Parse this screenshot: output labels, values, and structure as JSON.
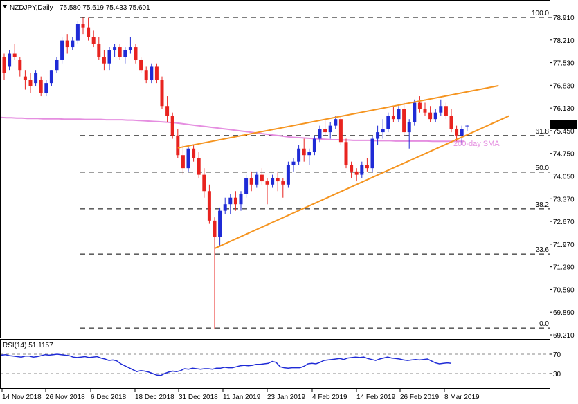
{
  "header": {
    "symbol_line": "NZDJPY,Daily",
    "ohlc_line": "75.580 75.619 75.433 75.601"
  },
  "colors": {
    "bull": "#1f2bd6",
    "bear": "#e8231f",
    "sma": "#e58ee0",
    "trend": "#f5941f",
    "fib": "#000000",
    "rsi": "#1f2bd6",
    "price_tag_bg": "#000000",
    "price_tag_fg": "#ffffff"
  },
  "chart_data": [
    {
      "type": "candlestick",
      "title": "NZDJPY,Daily",
      "x_tick_labels": [
        "14 Nov 2018",
        "26 Nov 2018",
        "6 Dec 2018",
        "18 Dec 2018",
        "31 Dec 2018",
        "11 Jan 2019",
        "23 Jan 2019",
        "4 Feb 2019",
        "14 Feb 2019",
        "26 Feb 2019",
        "8 Mar 2019"
      ],
      "y_tick_labels": [
        "78.910",
        "78.210",
        "77.530",
        "76.830",
        "76.130",
        "75.450",
        "74.750",
        "74.050",
        "73.370",
        "72.670",
        "71.970",
        "71.290",
        "70.590",
        "69.890",
        "69.210"
      ],
      "ylim": [
        69.21,
        78.91
      ],
      "current_price": "75.601",
      "candles": [
        [
          77.7,
          77.8,
          77.0,
          77.2
        ],
        [
          77.4,
          77.9,
          77.3,
          77.8
        ],
        [
          77.8,
          78.1,
          77.6,
          77.7
        ],
        [
          77.6,
          77.7,
          77.1,
          77.3
        ],
        [
          77.1,
          77.3,
          76.7,
          77.0
        ],
        [
          77.0,
          77.2,
          76.6,
          76.8
        ],
        [
          76.9,
          77.3,
          76.8,
          77.2
        ],
        [
          77.0,
          77.1,
          76.5,
          76.6
        ],
        [
          76.6,
          77.0,
          76.5,
          76.9
        ],
        [
          76.9,
          77.3,
          76.8,
          77.3
        ],
        [
          77.3,
          77.7,
          77.2,
          77.6
        ],
        [
          77.6,
          78.3,
          77.5,
          78.2
        ],
        [
          78.2,
          78.4,
          77.8,
          78.0
        ],
        [
          78.0,
          78.3,
          77.9,
          78.2
        ],
        [
          78.2,
          78.8,
          78.1,
          78.7
        ],
        [
          78.7,
          78.9,
          78.4,
          78.6
        ],
        [
          78.6,
          78.9,
          78.2,
          78.3
        ],
        [
          78.3,
          78.5,
          78.0,
          78.1
        ],
        [
          78.1,
          78.3,
          77.6,
          77.7
        ],
        [
          77.7,
          77.9,
          77.3,
          77.5
        ],
        [
          77.5,
          78.0,
          77.3,
          77.9
        ],
        [
          77.9,
          78.1,
          77.7,
          78.0
        ],
        [
          78.0,
          78.1,
          77.6,
          77.7
        ],
        [
          77.7,
          78.0,
          77.5,
          77.9
        ],
        [
          77.9,
          78.3,
          77.8,
          78.0
        ],
        [
          78.0,
          78.1,
          77.5,
          77.6
        ],
        [
          77.6,
          77.7,
          77.2,
          77.3
        ],
        [
          77.3,
          77.4,
          76.9,
          77.0
        ],
        [
          77.0,
          77.5,
          76.9,
          77.4
        ],
        [
          77.4,
          77.5,
          76.9,
          77.0
        ],
        [
          77.0,
          77.1,
          76.1,
          76.2
        ],
        [
          76.2,
          76.5,
          75.7,
          75.9
        ],
        [
          75.9,
          76.0,
          75.2,
          75.3
        ],
        [
          75.3,
          75.5,
          74.6,
          74.7
        ],
        [
          74.7,
          75.0,
          74.1,
          74.3
        ],
        [
          74.3,
          75.0,
          74.2,
          74.9
        ],
        [
          74.9,
          75.0,
          74.5,
          74.6
        ],
        [
          74.6,
          74.8,
          74.0,
          74.1
        ],
        [
          74.1,
          74.3,
          73.4,
          73.6
        ],
        [
          73.6,
          73.8,
          72.6,
          72.7
        ],
        [
          72.7,
          72.8,
          69.4,
          72.2
        ],
        [
          72.2,
          73.1,
          71.9,
          73.0
        ],
        [
          73.0,
          73.4,
          72.9,
          73.2
        ],
        [
          73.2,
          73.5,
          72.9,
          73.4
        ],
        [
          73.4,
          73.6,
          73.0,
          73.2
        ],
        [
          73.2,
          73.6,
          73.0,
          73.5
        ],
        [
          73.5,
          74.1,
          73.4,
          74.0
        ],
        [
          74.0,
          74.2,
          73.6,
          73.8
        ],
        [
          73.8,
          74.2,
          73.7,
          74.1
        ],
        [
          74.1,
          74.3,
          73.8,
          73.9
        ],
        [
          73.9,
          74.0,
          73.2,
          73.8
        ],
        [
          73.8,
          74.1,
          73.7,
          74.0
        ],
        [
          74.0,
          74.2,
          73.6,
          73.9
        ],
        [
          73.9,
          74.0,
          73.4,
          73.8
        ],
        [
          73.8,
          74.5,
          73.7,
          74.4
        ],
        [
          74.4,
          74.6,
          74.2,
          74.5
        ],
        [
          74.5,
          75.0,
          74.4,
          74.9
        ],
        [
          74.9,
          75.2,
          74.5,
          74.7
        ],
        [
          74.7,
          74.9,
          74.4,
          74.8
        ],
        [
          74.8,
          75.3,
          74.7,
          75.2
        ],
        [
          75.2,
          75.6,
          75.1,
          75.5
        ],
        [
          75.5,
          75.8,
          75.3,
          75.4
        ],
        [
          75.4,
          75.7,
          75.2,
          75.6
        ],
        [
          75.6,
          75.9,
          75.5,
          75.8
        ],
        [
          75.8,
          75.9,
          75.0,
          75.1
        ],
        [
          75.1,
          75.2,
          74.3,
          74.4
        ],
        [
          74.4,
          74.5,
          74.0,
          74.2
        ],
        [
          74.2,
          74.3,
          73.9,
          74.1
        ],
        [
          74.1,
          74.5,
          74.0,
          74.4
        ],
        [
          74.4,
          74.6,
          74.2,
          74.3
        ],
        [
          74.3,
          75.3,
          74.2,
          75.2
        ],
        [
          75.2,
          75.6,
          75.0,
          75.4
        ],
        [
          75.4,
          75.8,
          75.2,
          75.5
        ],
        [
          75.5,
          76.0,
          75.4,
          75.9
        ],
        [
          75.9,
          76.2,
          75.7,
          75.8
        ],
        [
          75.8,
          76.2,
          75.7,
          76.1
        ],
        [
          76.1,
          76.3,
          75.3,
          75.4
        ],
        [
          75.4,
          75.8,
          74.9,
          75.7
        ],
        [
          75.7,
          76.4,
          75.6,
          76.3
        ],
        [
          76.3,
          76.5,
          76.0,
          76.1
        ],
        [
          76.1,
          76.3,
          75.9,
          76.0
        ],
        [
          76.0,
          76.2,
          75.7,
          75.8
        ],
        [
          75.8,
          76.1,
          75.7,
          76.0
        ],
        [
          76.0,
          76.4,
          75.9,
          76.2
        ],
        [
          76.2,
          76.3,
          75.8,
          75.9
        ],
        [
          75.9,
          76.1,
          75.4,
          75.5
        ],
        [
          75.5,
          75.6,
          75.1,
          75.3
        ],
        [
          75.3,
          75.6,
          75.0,
          75.5
        ],
        [
          75.58,
          75.619,
          75.433,
          75.601
        ]
      ],
      "sma_200": [
        75.85,
        75.84,
        75.84,
        75.83,
        75.83,
        75.82,
        75.82,
        75.82,
        75.81,
        75.81,
        75.81,
        75.81,
        75.8,
        75.8,
        75.8,
        75.8,
        75.79,
        75.79,
        75.79,
        75.79,
        75.78,
        75.78,
        75.78,
        75.78,
        75.77,
        75.77,
        75.76,
        75.75,
        75.74,
        75.73,
        75.72,
        75.71,
        75.7,
        75.69,
        75.67,
        75.65,
        75.63,
        75.61,
        75.59,
        75.57,
        75.55,
        75.53,
        75.51,
        75.49,
        75.47,
        75.45,
        75.43,
        75.41,
        75.39,
        75.37,
        75.35,
        75.33,
        75.31,
        75.29,
        75.27,
        75.25,
        75.24,
        75.23,
        75.22,
        75.21,
        75.2,
        75.19,
        75.18,
        75.17,
        75.17,
        75.16,
        75.16,
        75.15,
        75.15,
        75.15,
        75.15,
        75.14,
        75.14,
        75.14,
        75.14,
        75.13,
        75.13,
        75.13,
        75.13,
        75.13,
        75.13,
        75.13,
        75.12,
        75.12,
        75.12,
        75.12,
        75.12,
        75.12,
        75.12
      ],
      "sma_label": "200-day SMA",
      "trendlines": [
        {
          "from": [
            33,
            74.92
          ],
          "to": [
            94,
            76.82
          ]
        },
        {
          "from": [
            40,
            71.85
          ],
          "to": [
            96,
            75.9
          ]
        }
      ],
      "fib_levels": [
        {
          "label": "100.0",
          "price": 78.91
        },
        {
          "label": "61.8",
          "price": 75.3
        },
        {
          "label": "50.0",
          "price": 74.18
        },
        {
          "label": "38.2",
          "price": 73.06
        },
        {
          "label": "23.6",
          "price": 71.68
        },
        {
          "label": "0.0",
          "price": 69.42
        }
      ]
    },
    {
      "type": "line",
      "title": "RSI(14) 51.1157",
      "y_tick_labels": [
        "70",
        "30"
      ],
      "ylim": [
        0,
        100
      ],
      "levels": [
        70,
        30
      ],
      "values": [
        68,
        69,
        67,
        66,
        65,
        64,
        66,
        66,
        64,
        65,
        67,
        69,
        68,
        69,
        70,
        69,
        68,
        67,
        64,
        63,
        64,
        65,
        63,
        64,
        65,
        62,
        60,
        57,
        58,
        56,
        50,
        46,
        42,
        38,
        34,
        36,
        35,
        33,
        30,
        27,
        26,
        30,
        33,
        35,
        34,
        36,
        40,
        39,
        41,
        40,
        39,
        40,
        40,
        39,
        41,
        41,
        43,
        42,
        42,
        44,
        46,
        47,
        46,
        47,
        49,
        49,
        50,
        51,
        55,
        53,
        44,
        42,
        41,
        42,
        42,
        42,
        45,
        50,
        51,
        50,
        53,
        57,
        58,
        59,
        60,
        61,
        59,
        62,
        63,
        64,
        63,
        64,
        61,
        59,
        57,
        60,
        62,
        64,
        62,
        61,
        60,
        58,
        57,
        58,
        59,
        58,
        59,
        60,
        56,
        52,
        50,
        51,
        52,
        51
      ]
    }
  ]
}
